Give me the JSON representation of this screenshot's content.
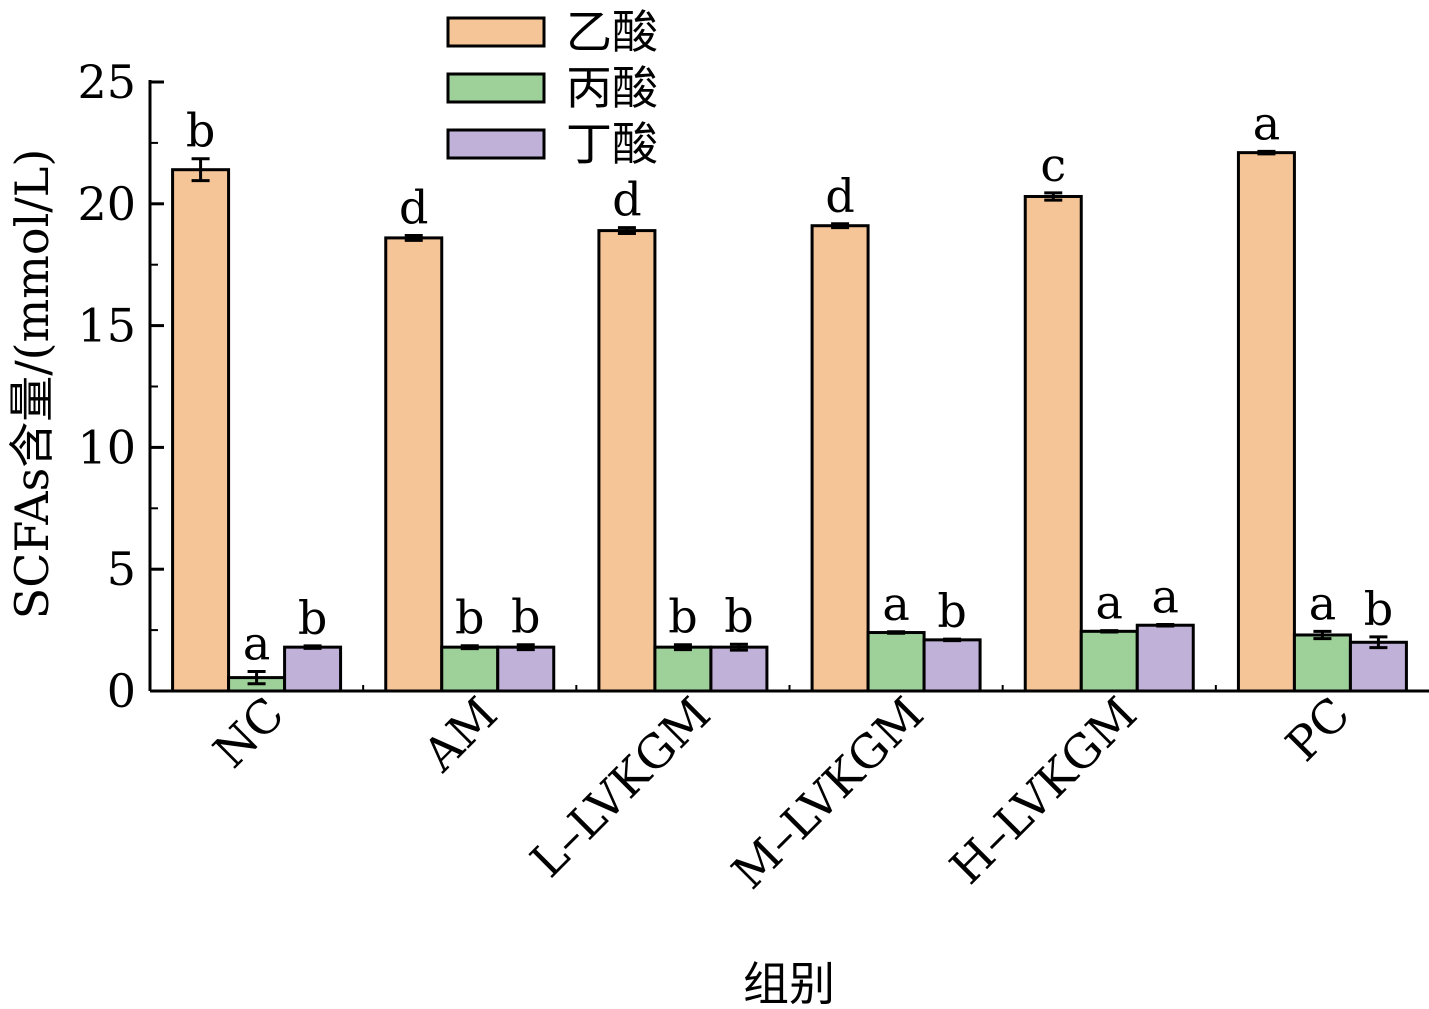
{
  "chart_data": {
    "type": "bar",
    "title": "",
    "xlabel": "组别",
    "ylabel": "SCFAs含量/(mmol/L)",
    "ylim": [
      0,
      25
    ],
    "yticks": [
      0,
      5,
      10,
      15,
      20,
      25
    ],
    "grid": false,
    "legend_position": "top",
    "categories": [
      "NC",
      "AM",
      "L–LVKGM",
      "M–LVKGM",
      "H–LVKGM",
      "PC"
    ],
    "series": [
      {
        "name": "乙酸",
        "color": "#f5c497",
        "values": [
          21.4,
          18.6,
          18.9,
          19.1,
          20.3,
          22.1
        ],
        "errors": [
          0.45,
          0.1,
          0.12,
          0.08,
          0.15,
          0.05
        ],
        "labels": [
          "b",
          "d",
          "d",
          "d",
          "c",
          "a"
        ]
      },
      {
        "name": "丙酸",
        "color": "#9ed19a",
        "values": [
          0.55,
          1.8,
          1.8,
          2.4,
          2.45,
          2.3
        ],
        "errors": [
          0.25,
          0.06,
          0.1,
          0.03,
          0.03,
          0.15
        ],
        "labels": [
          "a",
          "b",
          "b",
          "a",
          "a",
          "a"
        ]
      },
      {
        "name": "丁酸",
        "color": "#c0b1d9",
        "values": [
          1.8,
          1.8,
          1.8,
          2.1,
          2.7,
          2.0
        ],
        "errors": [
          0.05,
          0.1,
          0.12,
          0.03,
          0.03,
          0.22
        ],
        "labels": [
          "b",
          "b",
          "b",
          "b",
          "a",
          "b"
        ]
      }
    ]
  }
}
